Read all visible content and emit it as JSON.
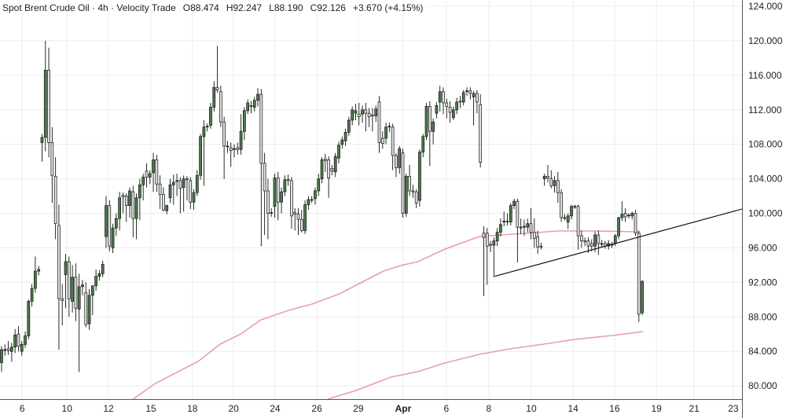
{
  "header": {
    "title": "Spot Brent Crude Oil · 4h · Velocity Trade",
    "open": "O88.474",
    "high": "H92.247",
    "low": "L88.190",
    "close": "C92.126",
    "change": "+3.670 (+4.15%)"
  },
  "colors": {
    "up": "#4a7d4a",
    "down": "#e2e2e2",
    "outline": "#111111",
    "ma": "#e8a0a6",
    "trendline": "#111111",
    "grid": "#ececec",
    "axis": "#555555"
  },
  "chart_data": {
    "type": "candlestick",
    "title": "Spot Brent Crude Oil · 4h · Velocity Trade",
    "ylim": [
      79,
      125
    ],
    "y_ticks": [
      "124.000",
      "120.000",
      "116.000",
      "112.000",
      "108.000",
      "104.000",
      "100.000",
      "96.000",
      "92.000",
      "88.000",
      "84.000",
      "80.000"
    ],
    "y_tick_values": [
      124,
      120,
      116,
      112,
      108,
      104,
      100,
      96,
      92,
      88,
      84,
      80
    ],
    "x_ticks": [
      {
        "label": "6",
        "bar": 6.1
      },
      {
        "label": "10",
        "bar": 19.4
      },
      {
        "label": "12",
        "bar": 31.7
      },
      {
        "label": "15",
        "bar": 44.3
      },
      {
        "label": "18",
        "bar": 56.6
      },
      {
        "label": "20",
        "bar": 68.8
      },
      {
        "label": "24",
        "bar": 81.1
      },
      {
        "label": "26",
        "bar": 93.5
      },
      {
        "label": "29",
        "bar": 105.8
      },
      {
        "label": "Apr",
        "bar": 119.1,
        "bold": true
      },
      {
        "label": "6",
        "bar": 131.9
      },
      {
        "label": "8",
        "bar": 144.5
      },
      {
        "label": "10",
        "bar": 157.1
      },
      {
        "label": "14",
        "bar": 169.5
      },
      {
        "label": "16",
        "bar": 181.8
      },
      {
        "label": "19",
        "bar": 194.2
      },
      {
        "label": "21",
        "bar": 205.4
      },
      {
        "label": "23",
        "bar": 217.0
      }
    ],
    "grid": true,
    "ohlc": [
      [
        82.7,
        84.6,
        81.6,
        84.2
      ],
      [
        84.2,
        84.8,
        83.5,
        84.2
      ],
      [
        84.3,
        85.2,
        83.6,
        84.1
      ],
      [
        84.0,
        85.0,
        82.8,
        84.5
      ],
      [
        84.5,
        86.6,
        83.8,
        85.9
      ],
      [
        86.0,
        86.9,
        84.0,
        84.6
      ],
      [
        84.0,
        85.2,
        83.5,
        84.8
      ],
      [
        84.8,
        86.3,
        84.4,
        85.8
      ],
      [
        85.8,
        90.0,
        85.4,
        89.8
      ],
      [
        89.8,
        91.8,
        89.2,
        91.3
      ],
      [
        91.3,
        95.0,
        90.8,
        93.3
      ],
      [
        93.3,
        93.9,
        92.8,
        93.5
      ],
      [
        108.2,
        109.2,
        106.0,
        108.8
      ],
      [
        108.8,
        120.0,
        107.2,
        116.6
      ],
      [
        116.6,
        119.2,
        106.5,
        108.2
      ],
      [
        108.2,
        110.0,
        101.2,
        104.4
      ],
      [
        104.3,
        106.5,
        97.0,
        98.8
      ],
      [
        98.6,
        101.0,
        84.2,
        90.1
      ],
      [
        90.1,
        91.8,
        87.0,
        89.9
      ],
      [
        92.9,
        95.3,
        89.0,
        94.4
      ],
      [
        94.4,
        95.0,
        88.0,
        90.1
      ],
      [
        89.8,
        94.0,
        88.5,
        92.6
      ],
      [
        92.6,
        94.2,
        87.5,
        89.0
      ],
      [
        88.9,
        93.0,
        81.6,
        91.5
      ],
      [
        91.5,
        92.3,
        90.5,
        91.7
      ],
      [
        90.8,
        92.0,
        86.8,
        87.1
      ],
      [
        87.2,
        91.2,
        86.5,
        90.5
      ],
      [
        90.5,
        91.5,
        88.2,
        91.6
      ],
      [
        91.6,
        93.5,
        91.0,
        92.7
      ],
      [
        92.7,
        93.4,
        92.2,
        93.0
      ],
      [
        93.0,
        94.5,
        92.6,
        94.1
      ],
      [
        97.3,
        102.0,
        96.0,
        100.9
      ],
      [
        100.9,
        101.5,
        95.6,
        96.2
      ],
      [
        96.0,
        98.8,
        95.4,
        98.3
      ],
      [
        98.3,
        100.0,
        97.4,
        99.4
      ],
      [
        99.4,
        102.5,
        98.0,
        101.8
      ],
      [
        102.1,
        102.4,
        100.0,
        101.9
      ],
      [
        102.0,
        102.3,
        99.0,
        100.9
      ],
      [
        100.9,
        103.0,
        99.5,
        102.6
      ],
      [
        102.5,
        103.2,
        97.2,
        99.4
      ],
      [
        99.4,
        102.3,
        97.0,
        101.8
      ],
      [
        101.8,
        104.0,
        99.2,
        103.3
      ],
      [
        103.3,
        104.6,
        101.5,
        104.2
      ],
      [
        104.9,
        105.8,
        103.0,
        104.2
      ],
      [
        104.2,
        105.0,
        103.4,
        104.6
      ],
      [
        104.7,
        107.0,
        102.5,
        106.2
      ],
      [
        106.2,
        106.8,
        102.5,
        103.4
      ],
      [
        103.4,
        104.4,
        100.5,
        102.2
      ],
      [
        102.2,
        103.0,
        100.2,
        100.4
      ],
      [
        100.3,
        101.0,
        99.9,
        100.9
      ],
      [
        101.8,
        104.0,
        101.2,
        103.3
      ],
      [
        103.3,
        104.5,
        101.0,
        103.6
      ],
      [
        103.7,
        104.6,
        102.0,
        103.8
      ],
      [
        103.8,
        104.2,
        100.0,
        102.9
      ],
      [
        103.0,
        104.4,
        100.2,
        104.0
      ],
      [
        104.0,
        104.3,
        101.5,
        103.9
      ],
      [
        103.8,
        104.2,
        100.5,
        101.3
      ],
      [
        101.3,
        102.8,
        100.4,
        102.4
      ],
      [
        102.4,
        105.0,
        102.0,
        104.4
      ],
      [
        104.4,
        109.2,
        103.9,
        108.9
      ],
      [
        108.9,
        110.8,
        103.2,
        110.0
      ],
      [
        110.0,
        110.4,
        109.5,
        110.1
      ],
      [
        110.2,
        112.8,
        109.8,
        112.3
      ],
      [
        112.3,
        115.3,
        111.8,
        114.6
      ],
      [
        114.6,
        119.4,
        114.0,
        114.3
      ],
      [
        114.1,
        114.8,
        110.0,
        110.6
      ],
      [
        110.6,
        111.2,
        104.0,
        107.8
      ],
      [
        107.8,
        108.4,
        107.0,
        107.8
      ],
      [
        107.6,
        108.2,
        105.4,
        107.3
      ],
      [
        107.4,
        108.0,
        106.5,
        107.5
      ],
      [
        107.6,
        108.2,
        106.8,
        107.4
      ],
      [
        107.4,
        111.5,
        106.8,
        109.5
      ],
      [
        109.5,
        112.3,
        108.5,
        111.9
      ],
      [
        111.9,
        113.2,
        111.5,
        112.8
      ],
      [
        112.5,
        113.0,
        111.6,
        112.4
      ],
      [
        112.3,
        113.5,
        111.8,
        113.1
      ],
      [
        113.1,
        114.5,
        112.4,
        113.8
      ],
      [
        113.8,
        114.4,
        96.2,
        105.8
      ],
      [
        105.8,
        107.0,
        97.5,
        102.6
      ],
      [
        102.6,
        104.0,
        97.0,
        100.0
      ],
      [
        100.0,
        100.6,
        99.6,
        100.1
      ],
      [
        100.8,
        104.6,
        99.5,
        104.1
      ],
      [
        104.1,
        104.8,
        99.2,
        101.3
      ],
      [
        101.3,
        103.0,
        100.0,
        102.5
      ],
      [
        102.5,
        104.4,
        102.0,
        103.9
      ],
      [
        103.9,
        104.5,
        103.2,
        103.8
      ],
      [
        103.8,
        104.2,
        98.2,
        99.7
      ],
      [
        100.1,
        100.6,
        98.0,
        99.9
      ],
      [
        99.9,
        100.6,
        97.5,
        99.3
      ],
      [
        99.3,
        100.4,
        97.8,
        98.0
      ],
      [
        98.0,
        101.5,
        97.6,
        101.0
      ],
      [
        101.0,
        102.0,
        100.4,
        101.6
      ],
      [
        101.6,
        102.0,
        101.2,
        101.6
      ],
      [
        101.7,
        103.0,
        101.0,
        102.6
      ],
      [
        102.6,
        104.6,
        102.0,
        104.0
      ],
      [
        104.0,
        106.5,
        103.5,
        106.2
      ],
      [
        106.3,
        106.9,
        104.8,
        106.1
      ],
      [
        106.2,
        106.6,
        101.8,
        104.1
      ],
      [
        105.2,
        105.6,
        104.4,
        104.9
      ],
      [
        104.8,
        107.0,
        104.2,
        106.6
      ],
      [
        106.4,
        108.3,
        105.8,
        107.9
      ],
      [
        108.0,
        108.9,
        107.5,
        108.5
      ],
      [
        108.4,
        109.8,
        107.8,
        109.4
      ],
      [
        109.4,
        111.2,
        109.0,
        110.8
      ],
      [
        110.8,
        112.4,
        110.2,
        112.0
      ],
      [
        111.6,
        112.7,
        110.8,
        111.9
      ],
      [
        111.5,
        112.8,
        110.2,
        111.2
      ],
      [
        111.5,
        112.5,
        110.5,
        112.0
      ],
      [
        112.0,
        112.8,
        109.5,
        111.6
      ],
      [
        111.6,
        112.2,
        110.0,
        111.2
      ],
      [
        111.4,
        112.2,
        109.5,
        111.3
      ],
      [
        111.3,
        112.5,
        110.6,
        112.1
      ],
      [
        112.9,
        113.6,
        107.0,
        108.2
      ],
      [
        108.7,
        109.5,
        107.5,
        108.1
      ],
      [
        108.7,
        110.5,
        108.0,
        110.0
      ],
      [
        110.0,
        110.5,
        109.4,
        110.1
      ],
      [
        110.0,
        110.4,
        105.0,
        106.7
      ],
      [
        106.7,
        107.0,
        104.2,
        105.3
      ],
      [
        105.3,
        107.8,
        104.6,
        107.5
      ],
      [
        107.0,
        107.5,
        99.5,
        100.0
      ],
      [
        100.0,
        104.6,
        99.6,
        104.3
      ],
      [
        104.3,
        105.6,
        102.0,
        102.6
      ],
      [
        102.6,
        103.3,
        101.8,
        102.5
      ],
      [
        102.5,
        102.8,
        100.6,
        101.2
      ],
      [
        101.5,
        107.4,
        100.8,
        107.1
      ],
      [
        107.1,
        109.2,
        106.5,
        108.9
      ],
      [
        108.9,
        112.8,
        108.5,
        112.4
      ],
      [
        112.4,
        113.0,
        105.5,
        109.5
      ],
      [
        109.5,
        111.0,
        108.0,
        110.6
      ],
      [
        111.6,
        112.9,
        111.0,
        112.5
      ],
      [
        112.9,
        114.8,
        111.8,
        114.1
      ],
      [
        114.1,
        114.6,
        111.5,
        112.8
      ],
      [
        112.8,
        113.3,
        111.0,
        112.4
      ],
      [
        112.3,
        113.0,
        110.5,
        111.7
      ],
      [
        111.1,
        112.4,
        110.8,
        112.0
      ],
      [
        112.0,
        113.4,
        111.5,
        112.9
      ],
      [
        113.0,
        113.6,
        112.2,
        112.9
      ],
      [
        112.9,
        114.3,
        112.5,
        114.0
      ],
      [
        114.2,
        114.6,
        113.6,
        114.2
      ],
      [
        114.2,
        114.6,
        113.2,
        113.9
      ],
      [
        113.5,
        114.2,
        110.2,
        113.9
      ],
      [
        113.9,
        114.3,
        111.6,
        112.9
      ],
      [
        112.6,
        113.8,
        105.3,
        105.9
      ],
      [
        97.7,
        98.5,
        90.4,
        97.2
      ],
      [
        97.7,
        98.3,
        91.7,
        96.2
      ],
      [
        96.4,
        96.8,
        95.5,
        96.3
      ],
      [
        96.3,
        97.2,
        92.6,
        96.8
      ],
      [
        96.8,
        98.3,
        96.2,
        97.8
      ],
      [
        97.8,
        99.4,
        97.3,
        98.7
      ],
      [
        99.0,
        100.2,
        98.5,
        99.1
      ],
      [
        99.1,
        100.0,
        98.6,
        99.1
      ],
      [
        99.0,
        101.2,
        98.6,
        100.9
      ],
      [
        100.9,
        101.7,
        100.5,
        101.4
      ],
      [
        101.4,
        101.7,
        94.3,
        98.4
      ],
      [
        98.4,
        99.4,
        97.6,
        98.4
      ],
      [
        98.4,
        99.3,
        97.4,
        98.5
      ],
      [
        98.4,
        99.4,
        97.8,
        98.8
      ],
      [
        98.8,
        100.6,
        97.0,
        97.8
      ],
      [
        97.8,
        99.4,
        96.0,
        97.1
      ],
      [
        97.3,
        98.0,
        95.3,
        96.1
      ],
      [
        96.2,
        96.6,
        95.8,
        96.1
      ],
      [
        104.0,
        104.6,
        103.2,
        104.3
      ],
      [
        104.3,
        105.6,
        103.6,
        104.1
      ],
      [
        104.0,
        105.0,
        102.9,
        103.2
      ],
      [
        103.2,
        104.3,
        102.4,
        103.8
      ],
      [
        103.8,
        104.8,
        101.2,
        102.4
      ],
      [
        102.4,
        102.8,
        99.0,
        99.5
      ],
      [
        99.5,
        99.9,
        99.2,
        99.5
      ],
      [
        99.0,
        100.0,
        98.2,
        99.7
      ],
      [
        99.7,
        101.0,
        99.3,
        100.8
      ],
      [
        100.8,
        101.0,
        100.5,
        100.8
      ],
      [
        100.8,
        101.0,
        95.8,
        97.4
      ],
      [
        97.4,
        98.0,
        96.0,
        96.8
      ],
      [
        96.8,
        97.2,
        96.2,
        96.7
      ],
      [
        96.8,
        97.2,
        95.4,
        96.2
      ],
      [
        96.5,
        97.0,
        95.6,
        96.2
      ],
      [
        96.2,
        97.9,
        95.5,
        97.5
      ],
      [
        97.5,
        98.0,
        95.2,
        96.5
      ],
      [
        96.5,
        96.9,
        96.1,
        96.5
      ],
      [
        96.5,
        96.8,
        95.9,
        96.2
      ],
      [
        96.2,
        96.9,
        95.8,
        96.5
      ],
      [
        96.4,
        96.7,
        96.0,
        96.4
      ],
      [
        96.5,
        97.6,
        96.2,
        97.4
      ],
      [
        97.4,
        99.6,
        97.0,
        99.5
      ],
      [
        99.5,
        101.4,
        99.1,
        99.9
      ],
      [
        100.0,
        100.6,
        99.0,
        99.6
      ],
      [
        99.7,
        100.0,
        99.4,
        99.8
      ],
      [
        99.7,
        100.2,
        99.3,
        100.0
      ],
      [
        100.0,
        100.4,
        97.4,
        97.7
      ],
      [
        97.7,
        98.0,
        87.4,
        88.3
      ],
      [
        88.474,
        92.247,
        88.19,
        92.126
      ]
    ],
    "moving_averages": [
      {
        "points": [
          [
            39,
            78.46
          ],
          [
            45.6,
            80.28
          ],
          [
            58.3,
            82.83
          ],
          [
            64.8,
            84.83
          ],
          [
            70.9,
            86.01
          ],
          [
            76.9,
            87.65
          ],
          [
            85.1,
            88.75
          ],
          [
            92.1,
            89.48
          ],
          [
            100.2,
            90.67
          ],
          [
            105.1,
            91.67
          ],
          [
            113.3,
            93.31
          ],
          [
            118.4,
            93.95
          ],
          [
            123.5,
            94.4
          ],
          [
            131.5,
            95.86
          ],
          [
            141.7,
            97.31
          ],
          [
            147.8,
            97.5
          ],
          [
            155.7,
            97.68
          ],
          [
            164.8,
            97.95
          ],
          [
            176,
            97.95
          ],
          [
            189,
            97.86
          ]
        ]
      },
      {
        "points": [
          [
            96.7,
            78.46
          ],
          [
            105.1,
            79.46
          ],
          [
            115.4,
            81.01
          ],
          [
            123.5,
            81.65
          ],
          [
            131.5,
            82.65
          ],
          [
            141.7,
            83.65
          ],
          [
            150.8,
            84.29
          ],
          [
            160.8,
            84.84
          ],
          [
            169.9,
            85.38
          ],
          [
            181.1,
            85.84
          ],
          [
            190.2,
            86.29
          ]
        ]
      }
    ],
    "trendline": {
      "start": {
        "bar": 146.2,
        "price": 92.7
      },
      "end": {
        "bar": 219.6,
        "price": 100.5
      }
    }
  }
}
